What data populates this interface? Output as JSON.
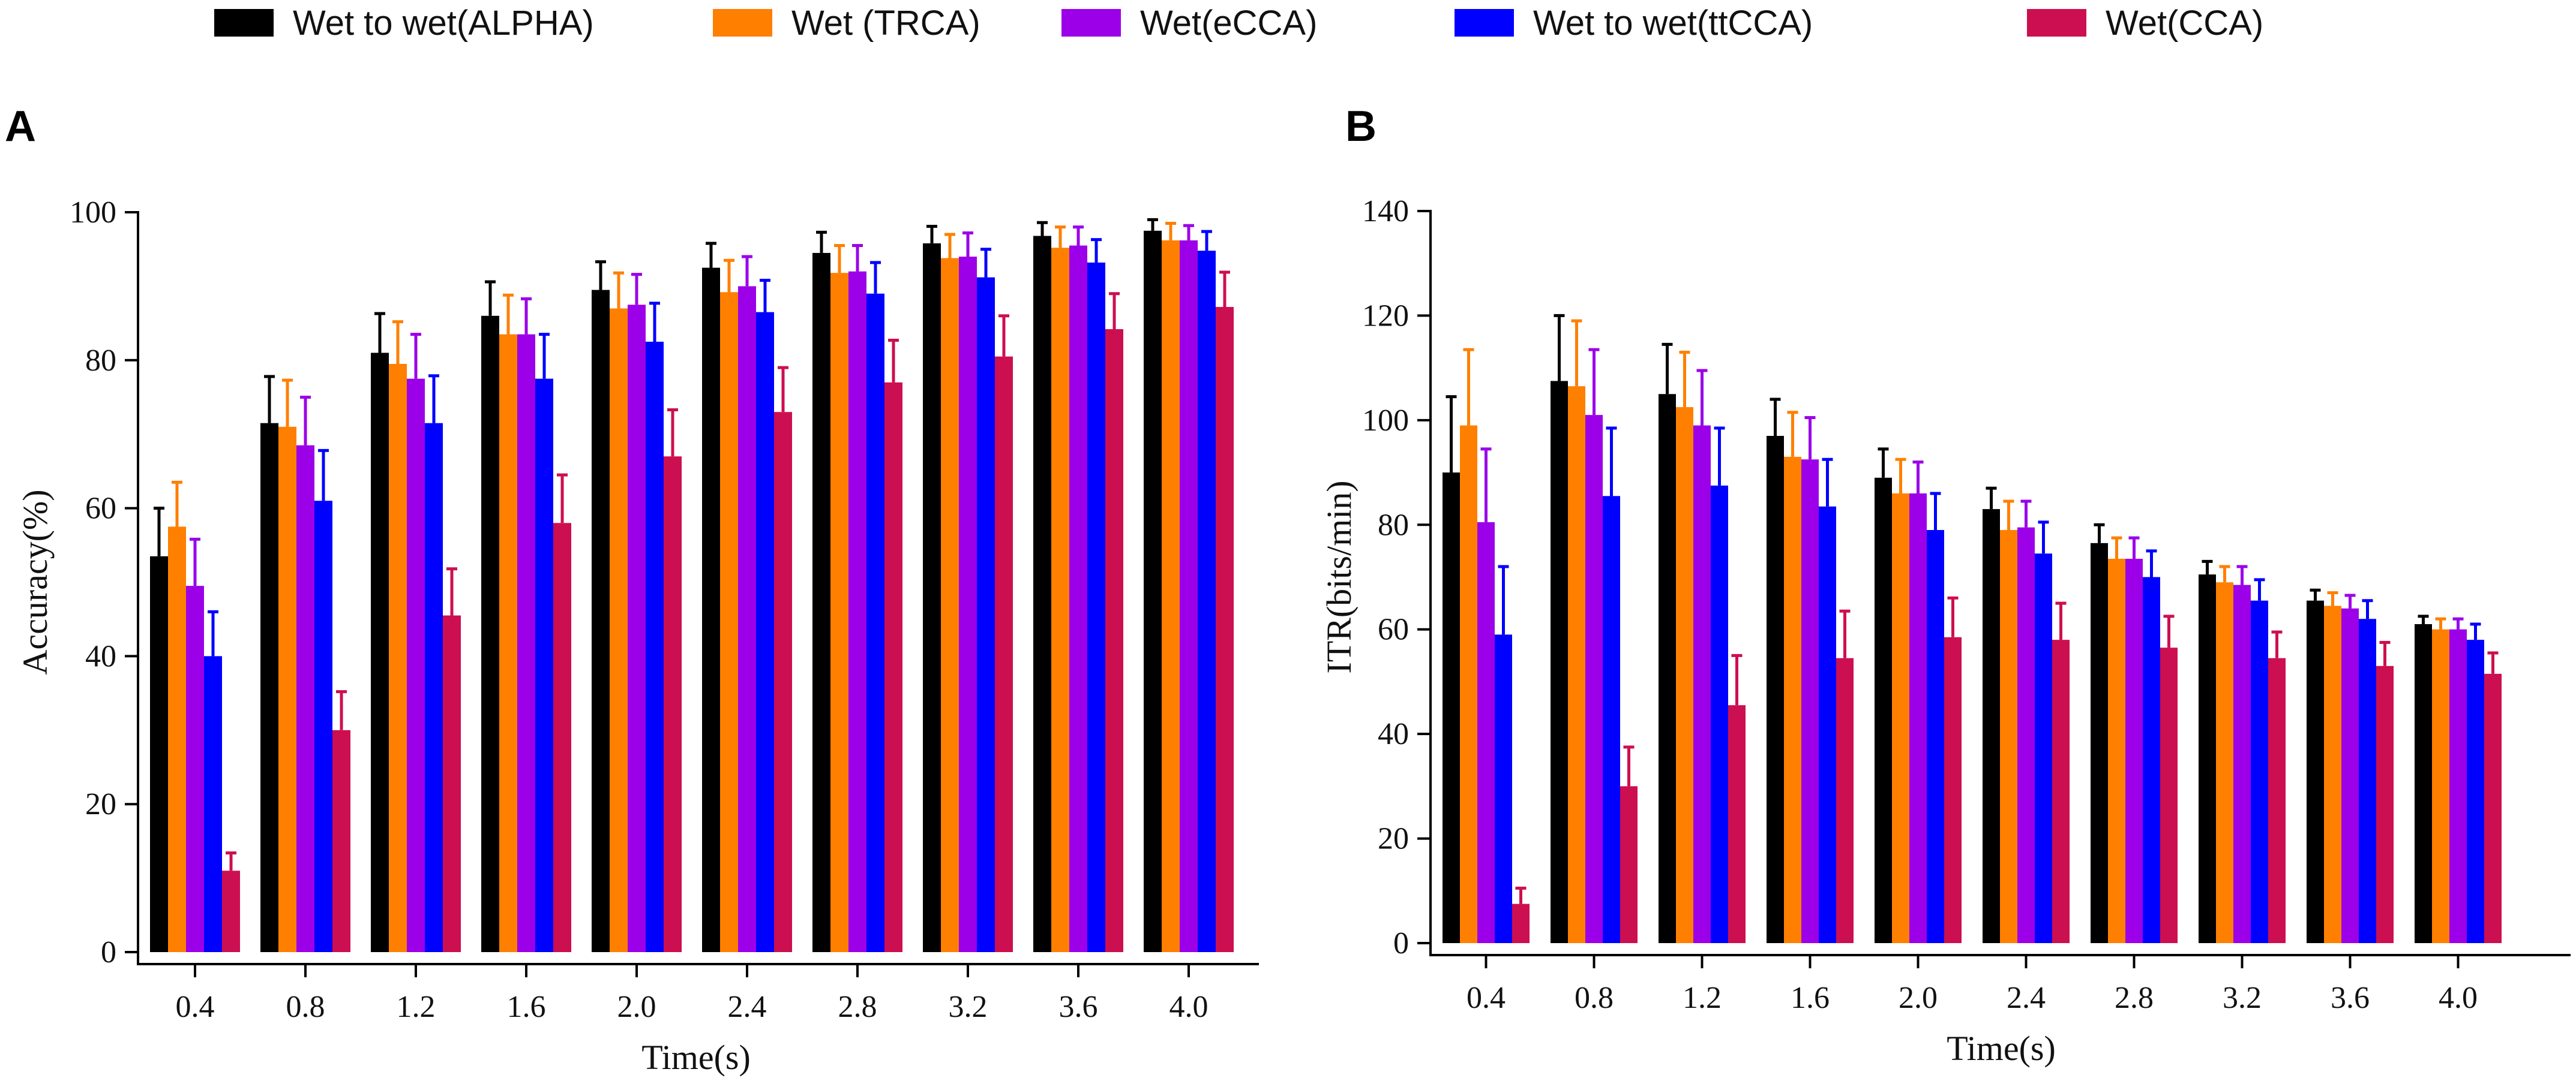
{
  "legend": [
    {
      "name": "Wet to wet(ALPHA)",
      "color": "#000000"
    },
    {
      "name": "Wet (TRCA)",
      "color": "#ff7f00"
    },
    {
      "name": "Wet(eCCA)",
      "color": "#9b00e8"
    },
    {
      "name": "Wet to wet(ttCCA)",
      "color": "#0000ff"
    },
    {
      "name": "Wet(CCA)",
      "color": "#cc0f50"
    }
  ],
  "chart_data": [
    {
      "type": "bar",
      "panel_label": "A",
      "xlabel": "Time(s)",
      "ylabel": "Accuracy(%)",
      "ylim": [
        0,
        100
      ],
      "yticks": [
        0,
        20,
        40,
        60,
        80,
        100
      ],
      "categories": [
        "0.4",
        "0.8",
        "1.2",
        "1.6",
        "2.0",
        "2.4",
        "2.8",
        "3.2",
        "3.6",
        "4.0"
      ],
      "series": [
        {
          "name": "Wet to wet(ALPHA)",
          "color": "#000000",
          "values": [
            53.5,
            71.5,
            81,
            86,
            89.5,
            92.5,
            94.5,
            95.8,
            96.8,
            97.5
          ],
          "errors": [
            6.5,
            6.3,
            5.3,
            4.6,
            3.8,
            3.3,
            2.8,
            2.3,
            1.8,
            1.5
          ]
        },
        {
          "name": "Wet (TRCA)",
          "color": "#ff7f00",
          "values": [
            57.5,
            71,
            79.5,
            83.5,
            87,
            89.2,
            91.8,
            93.8,
            95.2,
            96.2
          ],
          "errors": [
            6,
            6.3,
            5.7,
            5.3,
            4.8,
            4.3,
            3.7,
            3.2,
            2.8,
            2.3
          ]
        },
        {
          "name": "Wet(eCCA)",
          "color": "#9b00e8",
          "values": [
            49.5,
            68.5,
            77.5,
            83.5,
            87.5,
            90,
            92,
            94,
            95.5,
            96.2
          ],
          "errors": [
            6.3,
            6.5,
            6,
            4.8,
            4.1,
            4,
            3.5,
            3.2,
            2.5,
            2
          ]
        },
        {
          "name": "Wet to wet(ttCCA)",
          "color": "#0000ff",
          "values": [
            40,
            61,
            71.5,
            77.5,
            82.5,
            86.5,
            89,
            91.2,
            93.2,
            94.8
          ],
          "errors": [
            6,
            6.8,
            6.4,
            6,
            5.2,
            4.3,
            4.2,
            3.8,
            3.1,
            2.6
          ]
        },
        {
          "name": "Wet(CCA)",
          "color": "#cc0f50",
          "values": [
            11,
            30,
            45.5,
            58,
            67,
            73,
            77,
            80.5,
            84.2,
            87.2
          ],
          "errors": [
            2.4,
            5.2,
            6.3,
            6.5,
            6.3,
            6,
            5.7,
            5.5,
            4.8,
            4.7
          ]
        }
      ]
    },
    {
      "type": "bar",
      "panel_label": "B",
      "xlabel": "Time(s)",
      "ylabel": "ITR(bits/min)",
      "ylim": [
        0,
        140
      ],
      "yticks": [
        0,
        20,
        40,
        60,
        80,
        100,
        120,
        140
      ],
      "categories": [
        "0.4",
        "0.8",
        "1.2",
        "1.6",
        "2.0",
        "2.4",
        "2.8",
        "3.2",
        "3.6",
        "4.0"
      ],
      "series": [
        {
          "name": "Wet to wet(ALPHA)",
          "color": "#000000",
          "values": [
            90,
            107.5,
            105,
            97,
            89,
            83,
            76.5,
            70.5,
            65.5,
            61
          ],
          "errors": [
            14.5,
            12.5,
            9.5,
            7,
            5.5,
            4,
            3.5,
            2.5,
            2,
            1.5
          ]
        },
        {
          "name": "Wet (TRCA)",
          "color": "#ff7f00",
          "values": [
            99,
            106.5,
            102.5,
            93,
            86,
            79,
            73.5,
            69,
            64.5,
            60
          ],
          "errors": [
            14.5,
            12.5,
            10.5,
            8.5,
            6.5,
            5.5,
            4,
            3,
            2.5,
            2
          ]
        },
        {
          "name": "Wet(eCCA)",
          "color": "#9b00e8",
          "values": [
            80.5,
            101,
            99,
            92.5,
            86,
            79.5,
            73.5,
            68.5,
            64,
            60
          ],
          "errors": [
            14,
            12.5,
            10.5,
            8,
            6,
            5,
            4,
            3.5,
            2.5,
            2
          ]
        },
        {
          "name": "Wet to wet(ttCCA)",
          "color": "#0000ff",
          "values": [
            59,
            85.5,
            87.5,
            83.5,
            79,
            74.5,
            70,
            65.5,
            62,
            58
          ],
          "errors": [
            13,
            13,
            11,
            9,
            7,
            6,
            5,
            4,
            3.5,
            3
          ]
        },
        {
          "name": "Wet(CCA)",
          "color": "#cc0f50",
          "values": [
            7.5,
            30,
            45.5,
            54.5,
            58.5,
            58,
            56.5,
            54.5,
            53,
            51.5
          ],
          "errors": [
            3,
            7.5,
            9.5,
            9,
            7.5,
            7,
            6,
            5,
            4.5,
            4
          ]
        }
      ]
    }
  ]
}
